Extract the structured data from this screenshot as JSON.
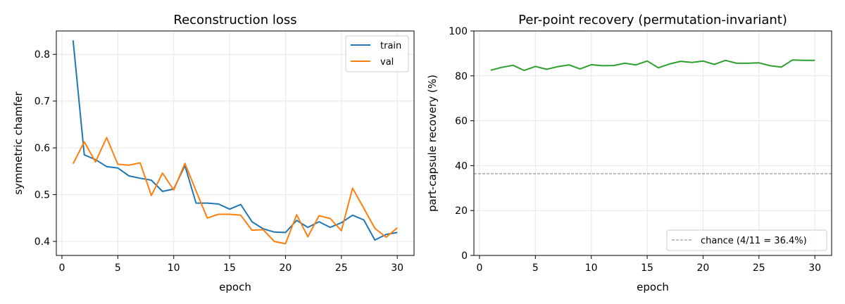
{
  "chart_data": [
    {
      "type": "line",
      "title": "Reconstruction loss",
      "xlabel": "epoch",
      "ylabel": "symmetric chamfer",
      "xlim": [
        -0.5,
        31.5
      ],
      "ylim": [
        0.37,
        0.85
      ],
      "xticks": [
        0,
        5,
        10,
        15,
        20,
        25,
        30
      ],
      "yticks": [
        0.4,
        0.5,
        0.6,
        0.7,
        0.8
      ],
      "grid": true,
      "legend_position": "top-right",
      "x": [
        1,
        2,
        3,
        4,
        5,
        6,
        7,
        8,
        9,
        10,
        11,
        12,
        13,
        14,
        15,
        16,
        17,
        18,
        19,
        20,
        21,
        22,
        23,
        24,
        25,
        26,
        27,
        28,
        29,
        30
      ],
      "series": [
        {
          "name": "train",
          "color": "#1f77b4",
          "values": [
            0.83,
            0.585,
            0.575,
            0.56,
            0.557,
            0.54,
            0.535,
            0.531,
            0.507,
            0.512,
            0.562,
            0.482,
            0.482,
            0.48,
            0.469,
            0.479,
            0.442,
            0.427,
            0.42,
            0.419,
            0.445,
            0.43,
            0.442,
            0.43,
            0.44,
            0.456,
            0.446,
            0.403,
            0.415,
            0.419
          ]
        },
        {
          "name": "val",
          "color": "#ff7f0e",
          "values": [
            0.566,
            0.613,
            0.57,
            0.622,
            0.565,
            0.563,
            0.568,
            0.498,
            0.546,
            0.51,
            0.567,
            0.508,
            0.45,
            0.458,
            0.458,
            0.456,
            0.424,
            0.425,
            0.4,
            0.395,
            0.457,
            0.41,
            0.455,
            0.449,
            0.423,
            0.514,
            0.471,
            0.428,
            0.409,
            0.429
          ]
        }
      ]
    },
    {
      "type": "line",
      "title": "Per-point recovery (permutation-invariant)",
      "xlabel": "epoch",
      "ylabel": "part-capsule recovery (%)",
      "xlim": [
        -0.5,
        31.5
      ],
      "ylim": [
        0,
        100
      ],
      "xticks": [
        0,
        5,
        10,
        15,
        20,
        25,
        30
      ],
      "yticks": [
        0,
        20,
        40,
        60,
        80,
        100
      ],
      "grid": true,
      "legend_position": "bottom-right",
      "x": [
        1,
        2,
        3,
        4,
        5,
        6,
        7,
        8,
        9,
        10,
        11,
        12,
        13,
        14,
        15,
        16,
        17,
        18,
        19,
        20,
        21,
        22,
        23,
        24,
        25,
        26,
        27,
        28,
        29,
        30
      ],
      "series": [
        {
          "name": "",
          "color": "#2ca02c",
          "values": [
            82.5,
            83.8,
            84.7,
            82.4,
            84.2,
            82.9,
            84.1,
            84.9,
            83.1,
            85.0,
            84.5,
            84.6,
            85.6,
            84.9,
            86.6,
            83.6,
            85.3,
            86.5,
            86.0,
            86.6,
            85.1,
            86.9,
            85.6,
            85.6,
            85.8,
            84.5,
            83.9,
            87.1,
            86.9,
            86.9
          ]
        }
      ],
      "reference_line": {
        "label": "chance (4/11 = 36.4%)",
        "y": 36.4,
        "color": "#808080",
        "style": "dashed"
      }
    }
  ]
}
